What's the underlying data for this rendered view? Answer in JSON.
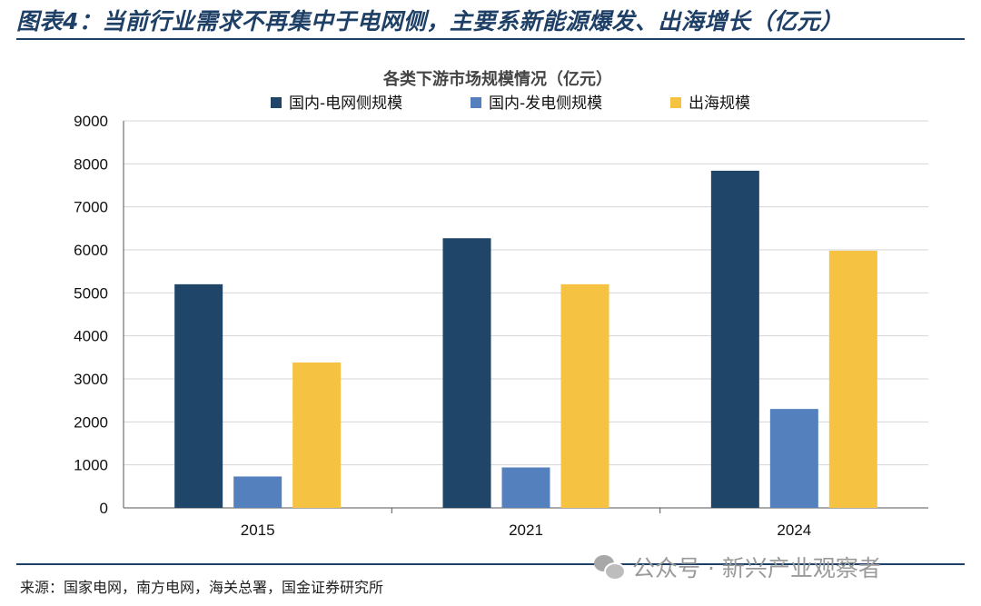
{
  "figure": {
    "title": "图表4：当前行业需求不再集中于电网侧，主要系新能源爆发、出海增长（亿元）",
    "source": "来源：国家电网，南方电网，海关总署，国金证券研究所",
    "watermark": "公众号 · 新兴产业观察者",
    "watermark_icon": "wechat-icon"
  },
  "chart_data": {
    "type": "bar",
    "title": "各类下游市场规模情况（亿元）",
    "xlabel": "",
    "ylabel": "",
    "categories": [
      "2015",
      "2021",
      "2024"
    ],
    "ylim": [
      0,
      9000
    ],
    "yticks": [
      0,
      1000,
      2000,
      3000,
      4000,
      5000,
      6000,
      7000,
      8000,
      9000
    ],
    "grid": "horizontal",
    "legend_position": "top",
    "series": [
      {
        "name": "国内-电网侧规模",
        "color": "#1f4569",
        "values": [
          5200,
          6270,
          7840
        ]
      },
      {
        "name": "国内-发电侧规模",
        "color": "#5480be",
        "values": [
          730,
          940,
          2300
        ]
      },
      {
        "name": "出海规模",
        "color": "#f5c242",
        "values": [
          3380,
          5200,
          5980
        ]
      }
    ]
  }
}
